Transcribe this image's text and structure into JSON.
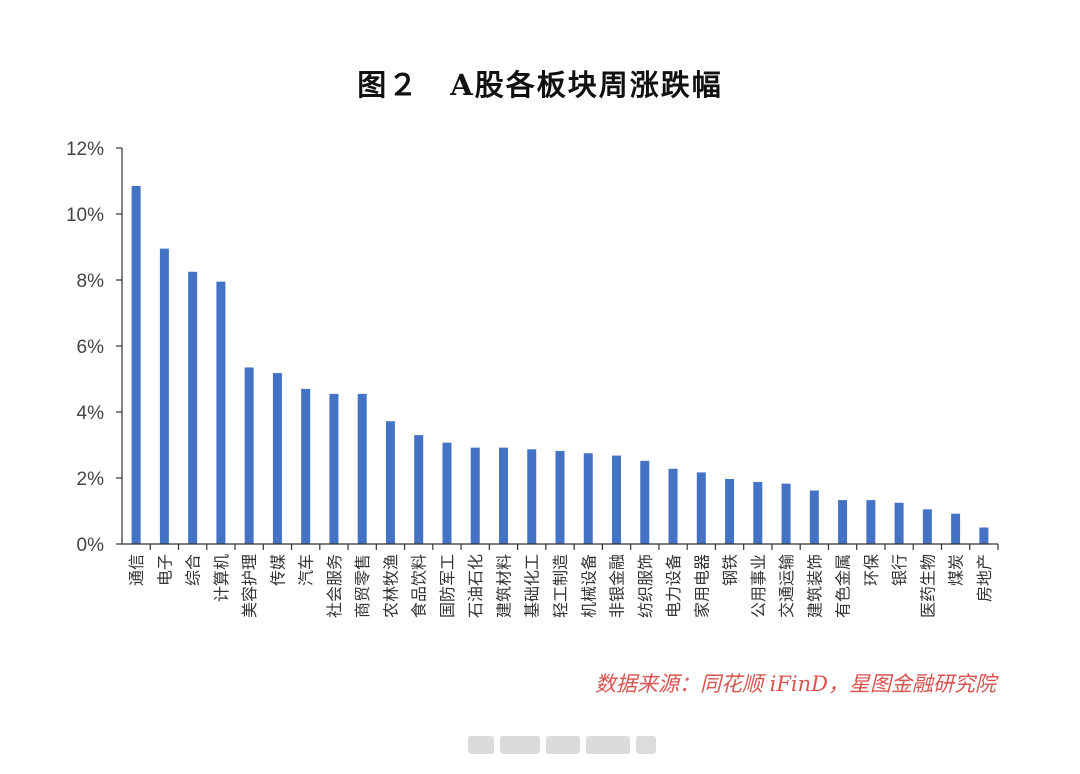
{
  "chart_data": {
    "type": "bar",
    "title": "图２　A股各板块周涨跌幅",
    "categories": [
      "通信",
      "电子",
      "综合",
      "计算机",
      "美容护理",
      "传媒",
      "汽车",
      "社会服务",
      "商贸零售",
      "农林牧渔",
      "食品饮料",
      "国防军工",
      "石油石化",
      "建筑材料",
      "基础化工",
      "轻工制造",
      "机械设备",
      "非银金融",
      "纺织服饰",
      "电力设备",
      "家用电器",
      "钢铁",
      "公用事业",
      "交通运输",
      "建筑装饰",
      "有色金属",
      "环保",
      "银行",
      "医药生物",
      "煤炭",
      "房地产"
    ],
    "values": [
      10.85,
      8.95,
      8.25,
      7.95,
      5.35,
      5.18,
      4.7,
      4.55,
      4.55,
      3.72,
      3.3,
      3.07,
      2.92,
      2.92,
      2.87,
      2.82,
      2.75,
      2.68,
      2.52,
      2.28,
      2.17,
      1.97,
      1.88,
      1.83,
      1.62,
      1.33,
      1.33,
      1.25,
      1.05,
      0.92,
      0.5
    ],
    "yticks": [
      "0%",
      "2%",
      "4%",
      "6%",
      "8%",
      "10%",
      "12%"
    ],
    "ylim": [
      0,
      12
    ],
    "bar_color": "#4472C4",
    "grid": false,
    "source": "数据来源：同花顺 iFinD，星图金融研究院"
  }
}
